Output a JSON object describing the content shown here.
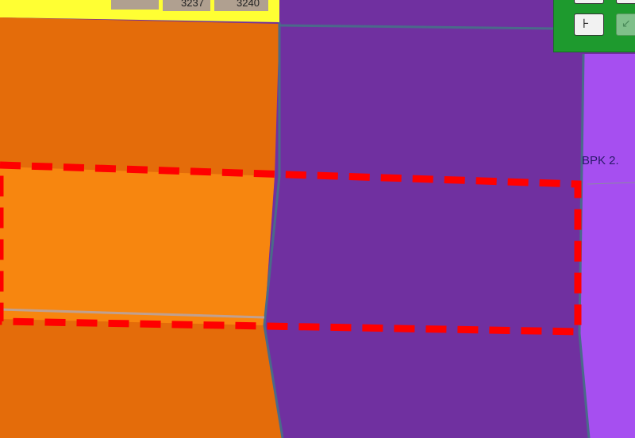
{
  "map": {
    "zones": [
      {
        "name": "orange-zone",
        "color": "#e46c0a"
      },
      {
        "name": "orange-highlight-zone",
        "color": "#f7860f"
      },
      {
        "name": "purple-zone",
        "color": "#7030a0"
      },
      {
        "name": "lilac-zone",
        "color": "#a64ff0"
      },
      {
        "name": "yellow-zone",
        "color": "#ffff33"
      }
    ],
    "selection_outline_color": "#ff0000",
    "labels": {
      "zone_code": "BPK 2.",
      "parcel_1": "3237",
      "parcel_2": "3240"
    }
  },
  "toolbar": {
    "buttons": [
      {
        "icon": "measure-icon"
      },
      {
        "icon": "arrow-icon"
      }
    ]
  }
}
